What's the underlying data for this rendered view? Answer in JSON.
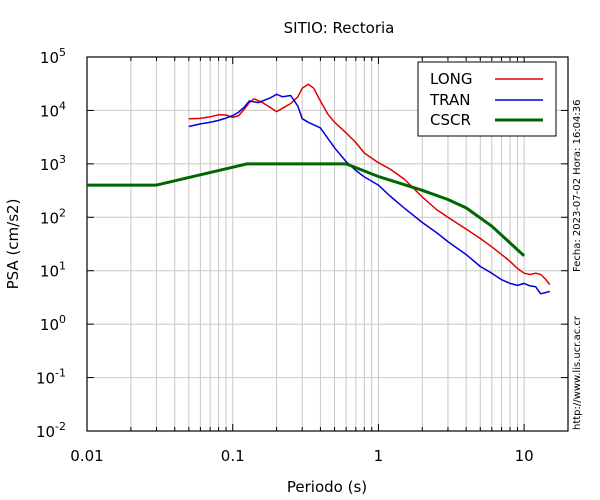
{
  "chart_data": {
    "type": "line",
    "title": "SITIO: Rectoria",
    "xlabel": "Periodo (s)",
    "ylabel": "PSA (cm/s2)",
    "x_scale": "log",
    "y_scale": "log",
    "xlim": [
      0.01,
      20
    ],
    "ylim": [
      0.01,
      100000
    ],
    "grid": true,
    "legend_position": "top-right",
    "x_tick_labels": [
      {
        "value": 0.01,
        "label": "0.01"
      },
      {
        "value": 0.1,
        "label": "0.1"
      },
      {
        "value": 1,
        "label": "1"
      },
      {
        "value": 10,
        "label": "10"
      }
    ],
    "y_tick_labels": [
      {
        "value": 100000,
        "base": "10",
        "exp": "5"
      },
      {
        "value": 10000,
        "base": "10",
        "exp": "4"
      },
      {
        "value": 1000,
        "base": "10",
        "exp": "3"
      },
      {
        "value": 100,
        "base": "10",
        "exp": "2"
      },
      {
        "value": 10,
        "base": "10",
        "exp": "1"
      },
      {
        "value": 1,
        "base": "10",
        "exp": "0"
      },
      {
        "value": 0.1,
        "base": "10",
        "exp": "-1"
      },
      {
        "value": 0.01,
        "base": "10",
        "exp": "-2"
      }
    ],
    "series": [
      {
        "name": "LONG",
        "color": "#e00000",
        "x": [
          0.05,
          0.06,
          0.07,
          0.08,
          0.09,
          0.1,
          0.11,
          0.12,
          0.13,
          0.14,
          0.16,
          0.18,
          0.2,
          0.22,
          0.25,
          0.28,
          0.3,
          0.33,
          0.36,
          0.4,
          0.45,
          0.5,
          0.6,
          0.7,
          0.8,
          1.0,
          1.2,
          1.5,
          2.0,
          2.5,
          3.0,
          4.0,
          5.0,
          6.0,
          7.0,
          8.0,
          9.0,
          10.0,
          11.0,
          12.0,
          13.0,
          14.0,
          15.0
        ],
        "y": [
          7000,
          7100,
          7600,
          8300,
          8200,
          7400,
          8000,
          10500,
          14000,
          16500,
          14000,
          11500,
          9500,
          11000,
          13500,
          18000,
          26000,
          31000,
          26000,
          15000,
          8500,
          6000,
          3800,
          2500,
          1600,
          1050,
          800,
          520,
          240,
          140,
          100,
          60,
          40,
          28,
          20,
          15,
          11,
          9.0,
          8.5,
          9.0,
          8.5,
          7.0,
          5.5
        ]
      },
      {
        "name": "TRAN",
        "color": "#0000dc",
        "x": [
          0.05,
          0.06,
          0.07,
          0.08,
          0.09,
          0.1,
          0.11,
          0.12,
          0.13,
          0.15,
          0.18,
          0.2,
          0.22,
          0.25,
          0.28,
          0.3,
          0.33,
          0.4,
          0.5,
          0.6,
          0.7,
          0.8,
          1.0,
          1.2,
          1.5,
          2.0,
          2.5,
          3.0,
          4.0,
          5.0,
          6.0,
          7.0,
          8.0,
          9.0,
          10.0,
          11.0,
          12.0,
          13.0,
          14.0,
          15.0
        ],
        "y": [
          5000,
          5600,
          6000,
          6500,
          7200,
          8000,
          9300,
          11500,
          15000,
          14000,
          17000,
          20000,
          18000,
          19000,
          12000,
          7000,
          6000,
          4700,
          2000,
          1100,
          750,
          570,
          400,
          250,
          150,
          80,
          52,
          35,
          20,
          12,
          9,
          6.8,
          5.8,
          5.3,
          5.8,
          5.2,
          5.0,
          3.7,
          3.9,
          4.1
        ]
      },
      {
        "name": "CSCR",
        "color": "#006600",
        "x": [
          0.01,
          0.03,
          0.125,
          0.6,
          1.0,
          2.0,
          3.0,
          4.0,
          6.0,
          10.0
        ],
        "y": [
          400,
          400,
          1000,
          1000,
          580,
          320,
          215,
          150,
          68,
          19
        ]
      }
    ],
    "annotations": [
      "Fecha: 2023-07-02  Hora: 16:04:36",
      "http://www.lis.ucr.ac.cr"
    ]
  }
}
